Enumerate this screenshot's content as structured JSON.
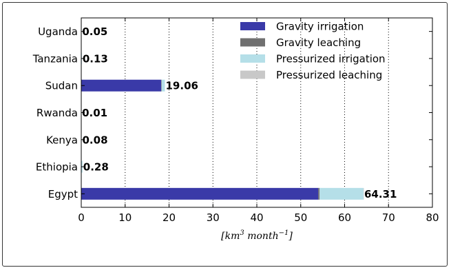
{
  "chart_data": {
    "type": "bar",
    "orientation": "horizontal",
    "stacked": true,
    "categories": [
      "Egypt",
      "Ethiopia",
      "Kenya",
      "Rwanda",
      "Sudan",
      "Tanzania",
      "Uganda"
    ],
    "series": [
      {
        "name": "Gravity irrigation",
        "color": "#3a3aa8",
        "values": [
          54.0,
          0.0,
          0.0,
          0.0,
          18.2,
          0.0,
          0.0
        ]
      },
      {
        "name": "Gravity leaching",
        "color": "#707070",
        "values": [
          0.3,
          0.0,
          0.0,
          0.0,
          0.1,
          0.0,
          0.0
        ]
      },
      {
        "name": "Pressurized irrigation",
        "color": "#b5dfe8",
        "values": [
          10.0,
          0.28,
          0.08,
          0.01,
          0.76,
          0.13,
          0.05
        ]
      },
      {
        "name": "Pressurized leaching",
        "color": "#c8c8c8",
        "values": [
          0.01,
          0.0,
          0.0,
          0.0,
          0.0,
          0.0,
          0.0
        ]
      }
    ],
    "totals": [
      64.31,
      0.28,
      0.08,
      0.01,
      19.06,
      0.13,
      0.05
    ],
    "total_labels": [
      "64.31",
      "0.28",
      "0.08",
      "0.01",
      "19.06",
      "0.13",
      "0.05"
    ],
    "xlim": [
      0,
      80
    ],
    "xticks": [
      0,
      10,
      20,
      30,
      40,
      50,
      60,
      70,
      80
    ],
    "xlabel": "[km",
    "xlabel_sup1": "3",
    "xlabel_mid": " month",
    "xlabel_sup2": "−1",
    "xlabel_end": "]",
    "grid": "x-dotted",
    "legend_position": "top-right"
  }
}
